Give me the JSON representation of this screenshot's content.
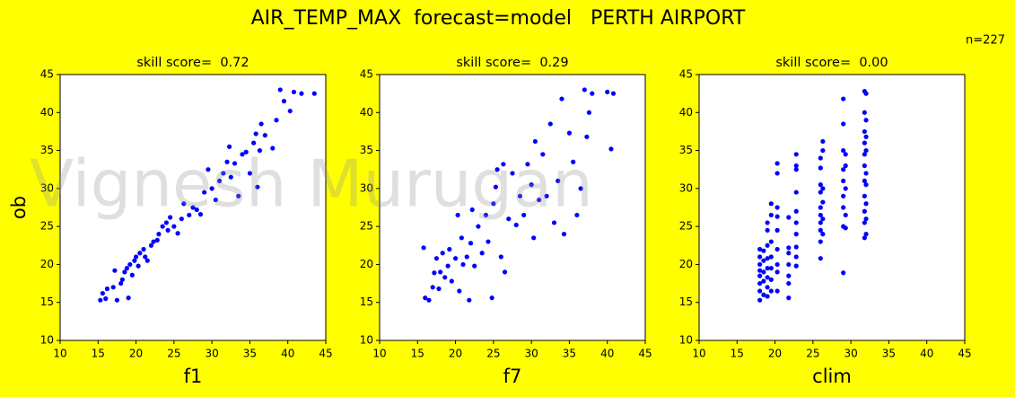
{
  "title": "AIR_TEMP_MAX  forecast=model   PERTH AIRPORT",
  "annotation": "n=227",
  "watermark": "Vignesh Murugan",
  "chart_data": [
    {
      "type": "scatter",
      "title": "skill score=  0.72",
      "xlabel": "f1",
      "ylabel": "ob",
      "color": "blue",
      "xlim": [
        10,
        45
      ],
      "ylim": [
        10,
        45
      ],
      "xticks": [
        10,
        15,
        20,
        25,
        30,
        35,
        40,
        45
      ],
      "yticks": [
        10,
        15,
        20,
        25,
        30,
        35,
        40,
        45
      ],
      "x": [
        15.3,
        15.6,
        16,
        16.2,
        17,
        17.2,
        17.5,
        18,
        18.2,
        18.5,
        18.8,
        19,
        19.2,
        19.5,
        19.8,
        20,
        20.3,
        20.5,
        21,
        21.2,
        21.5,
        22,
        22.3,
        22.8,
        23,
        23.5,
        24,
        24.2,
        24.5,
        25,
        25.5,
        26,
        26.3,
        27,
        27.5,
        28,
        28.5,
        29,
        29.5,
        30,
        30.5,
        31,
        31.5,
        32,
        32.3,
        32.5,
        33,
        33.5,
        34,
        34.5,
        35,
        35.5,
        35.8,
        36,
        36.3,
        36.5,
        37,
        38,
        38.5,
        39,
        39.5,
        40.3,
        40.8,
        41.8,
        43.5
      ],
      "y": [
        15.3,
        16.2,
        15.5,
        16.8,
        17,
        19.2,
        15.3,
        17.5,
        18,
        19,
        19.5,
        15.6,
        20,
        18.6,
        20.5,
        21,
        19.8,
        21.5,
        22,
        21,
        20.5,
        22.5,
        23,
        23.2,
        24,
        25,
        25.5,
        24.5,
        26.2,
        25,
        24.1,
        26,
        28,
        26.5,
        27.5,
        27.2,
        26.6,
        29.5,
        32.5,
        30,
        28.5,
        31,
        32,
        33.5,
        35.5,
        31.5,
        33.3,
        29,
        34.5,
        34.8,
        32,
        36,
        37.2,
        30.2,
        35,
        38.5,
        37,
        35.3,
        39,
        43,
        41.5,
        40.2,
        42.7,
        42.5,
        42.5
      ]
    },
    {
      "type": "scatter",
      "title": "skill score=  0.29",
      "xlabel": "f7",
      "color": "blue",
      "xlim": [
        10,
        45
      ],
      "ylim": [
        10,
        45
      ],
      "xticks": [
        10,
        15,
        20,
        25,
        30,
        35,
        40,
        45
      ],
      "yticks": [
        10,
        15,
        20,
        25,
        30,
        35,
        40,
        45
      ],
      "x": [
        15.8,
        16,
        16.5,
        17,
        17.2,
        17.5,
        17.8,
        18,
        18.3,
        18.6,
        19,
        19.2,
        19.5,
        20,
        20.3,
        20.5,
        20.8,
        21,
        21.5,
        21.8,
        22,
        22.2,
        22.5,
        23,
        23.5,
        24,
        24.3,
        24.8,
        25,
        25.3,
        25.5,
        26,
        26.3,
        26.5,
        27,
        27.5,
        28,
        28.5,
        29,
        29.5,
        30,
        30.3,
        30.5,
        31,
        31.5,
        32,
        32.5,
        33,
        33.5,
        34,
        34.3,
        35,
        35.5,
        36,
        36.5,
        37,
        37.3,
        37.6,
        38,
        40,
        40.5,
        40.8
      ],
      "y": [
        22.2,
        15.6,
        15.3,
        17,
        18.9,
        20.8,
        16.8,
        19,
        21.5,
        18.3,
        19.8,
        22,
        17.8,
        20.8,
        26.5,
        16.5,
        23.5,
        20,
        21,
        15.3,
        22.8,
        27.2,
        19.8,
        25,
        21.5,
        26.5,
        23,
        15.6,
        28,
        30.2,
        32.5,
        21,
        33.2,
        19,
        26,
        32,
        25.2,
        29,
        26.5,
        33.2,
        30.5,
        23.5,
        36.2,
        28.5,
        34.5,
        29,
        38.5,
        25.5,
        31,
        41.8,
        24,
        37.3,
        33.5,
        26.5,
        30,
        43,
        36.8,
        40,
        42.5,
        42.7,
        35.2,
        42.5
      ]
    },
    {
      "type": "scatter",
      "title": "skill score=  0.00",
      "xlabel": "clim",
      "color": "blue",
      "xlim": [
        10,
        45
      ],
      "ylim": [
        10,
        45
      ],
      "xticks": [
        10,
        15,
        20,
        25,
        30,
        35,
        40,
        45
      ],
      "yticks": [
        10,
        15,
        20,
        25,
        30,
        35,
        40,
        45
      ],
      "x": [
        18,
        18,
        18,
        18,
        18,
        18,
        18,
        18,
        18.5,
        18.5,
        18.5,
        18.5,
        18.5,
        19,
        19,
        19,
        19,
        19,
        19,
        19,
        19,
        19.5,
        19.5,
        19.5,
        19.5,
        19.5,
        19.5,
        19.5,
        20.3,
        20.3,
        20.3,
        20.3,
        20.3,
        20.3,
        20.3,
        20.3,
        20.3,
        21.8,
        21.8,
        21.8,
        21.8,
        21.8,
        21.8,
        21.8,
        22.8,
        22.8,
        22.8,
        22.8,
        22.8,
        22.8,
        22.8,
        22.8,
        22.8,
        22.8,
        26,
        26,
        26,
        26,
        26,
        26,
        26,
        26,
        26,
        26,
        26.3,
        26.3,
        26.3,
        26.3,
        26.3,
        26.3,
        29,
        29,
        29,
        29,
        29,
        29,
        29,
        29,
        29,
        29.3,
        29.3,
        29.3,
        29.3,
        29.3,
        31.8,
        31.8,
        31.8,
        31.8,
        31.8,
        31.8,
        31.8,
        31.8,
        31.8,
        31.8,
        31.8,
        32,
        32,
        32,
        32,
        32,
        32,
        32,
        32,
        32
      ],
      "y": [
        15.3,
        16.5,
        17.5,
        18.5,
        19.2,
        20,
        21,
        22,
        16,
        17.8,
        19,
        20.5,
        21.8,
        15.8,
        17,
        18.3,
        19.5,
        20.8,
        22.5,
        24.5,
        25.5,
        16.5,
        18,
        19.5,
        21,
        23,
        26.5,
        28,
        16.5,
        19,
        20,
        22,
        24.5,
        26.3,
        27.5,
        33.3,
        32,
        15.6,
        17.5,
        18.5,
        20,
        21.5,
        22.2,
        26.2,
        19.8,
        21,
        22.3,
        24,
        25.5,
        27,
        29.5,
        32.5,
        33,
        34.5,
        20.8,
        23,
        24.5,
        25.5,
        26.5,
        27.5,
        29.5,
        30.5,
        32.7,
        34,
        24,
        26,
        28.2,
        30,
        35,
        36.2,
        18.9,
        25,
        27.5,
        29,
        31,
        32.5,
        35,
        38.5,
        41.8,
        24.8,
        26.5,
        30,
        33,
        34.5,
        23.5,
        25.5,
        27,
        29,
        31,
        33,
        34.5,
        36,
        37.5,
        40,
        42.8,
        24,
        26,
        28,
        30.5,
        32,
        35,
        36.8,
        39,
        42.5
      ]
    }
  ]
}
